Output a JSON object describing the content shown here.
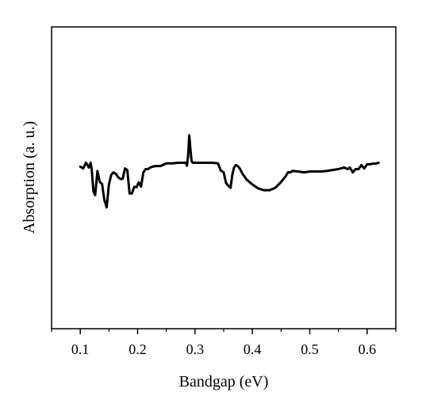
{
  "chart_data": {
    "type": "line",
    "title": "",
    "xlabel": "Bandgap (eV)",
    "ylabel": "Absorption (a. u.)",
    "xlim": [
      0.05,
      0.65
    ],
    "ylim": [
      0,
      1
    ],
    "grid": false,
    "legend": "none",
    "x_ticks": [
      0.1,
      0.2,
      0.3,
      0.4,
      0.5,
      0.6
    ],
    "x_tick_labels": [
      "0.1",
      "0.2",
      "0.3",
      "0.4",
      "0.5",
      "0.6"
    ],
    "series": [
      {
        "color": "#000000",
        "x": [
          0.1,
          0.105,
          0.11,
          0.115,
          0.118,
          0.12,
          0.123,
          0.126,
          0.13,
          0.134,
          0.138,
          0.142,
          0.146,
          0.15,
          0.154,
          0.158,
          0.162,
          0.166,
          0.17,
          0.174,
          0.178,
          0.182,
          0.186,
          0.19,
          0.194,
          0.198,
          0.202,
          0.206,
          0.21,
          0.214,
          0.218,
          0.222,
          0.226,
          0.232,
          0.24,
          0.25,
          0.26,
          0.27,
          0.28,
          0.284,
          0.286,
          0.288,
          0.29,
          0.292,
          0.294,
          0.296,
          0.3,
          0.31,
          0.32,
          0.33,
          0.34,
          0.345,
          0.35,
          0.354,
          0.358,
          0.362,
          0.365,
          0.368,
          0.371,
          0.374,
          0.378,
          0.383,
          0.39,
          0.4,
          0.41,
          0.42,
          0.43,
          0.44,
          0.45,
          0.458,
          0.462,
          0.466,
          0.47,
          0.48,
          0.49,
          0.5,
          0.51,
          0.52,
          0.53,
          0.54,
          0.55,
          0.56,
          0.566,
          0.57,
          0.575,
          0.58,
          0.585,
          0.59,
          0.595,
          0.6,
          0.605,
          0.61,
          0.615,
          0.62
        ],
        "values": [
          0.537,
          0.531,
          0.55,
          0.534,
          0.55,
          0.528,
          0.455,
          0.443,
          0.523,
          0.486,
          0.48,
          0.427,
          0.402,
          0.478,
          0.51,
          0.518,
          0.513,
          0.502,
          0.496,
          0.497,
          0.531,
          0.526,
          0.448,
          0.448,
          0.47,
          0.469,
          0.485,
          0.471,
          0.518,
          0.529,
          0.529,
          0.534,
          0.537,
          0.539,
          0.539,
          0.548,
          0.548,
          0.55,
          0.55,
          0.55,
          0.54,
          0.574,
          0.641,
          0.595,
          0.556,
          0.55,
          0.55,
          0.55,
          0.55,
          0.55,
          0.548,
          0.524,
          0.518,
          0.483,
          0.474,
          0.467,
          0.51,
          0.534,
          0.542,
          0.54,
          0.531,
          0.513,
          0.494,
          0.478,
          0.465,
          0.459,
          0.459,
          0.467,
          0.486,
          0.505,
          0.518,
          0.518,
          0.523,
          0.521,
          0.518,
          0.521,
          0.521,
          0.521,
          0.523,
          0.526,
          0.529,
          0.534,
          0.529,
          0.534,
          0.518,
          0.529,
          0.529,
          0.542,
          0.531,
          0.545,
          0.545,
          0.547,
          0.547,
          0.55
        ]
      }
    ]
  }
}
